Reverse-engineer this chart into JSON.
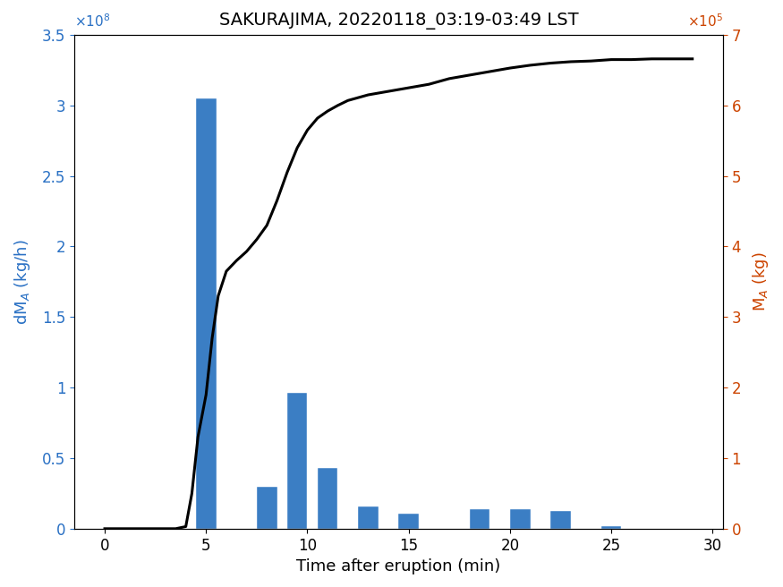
{
  "title": "SAKURAJIMA, 20220118_03:19-03:49 LST",
  "xlabel": "Time after eruption (min)",
  "ylabel_left": "dM$_A$ (kg/h)",
  "ylabel_right": "M$_A$ (kg)",
  "bar_color": "#3b7ec4",
  "line_color": "#000000",
  "left_axis_color": "#2970c4",
  "right_axis_color": "#cc4400",
  "bar_centers": [
    5.0,
    6.0,
    8.0,
    9.5,
    11.0,
    13.0,
    15.0,
    18.5,
    20.5,
    21.5,
    22.5,
    25.0
  ],
  "bar_heights": [
    305000000.0,
    0.0,
    30000000.0,
    96000000.0,
    43000000.0,
    16000000.0,
    10500000.0,
    14000000.0,
    14000000.0,
    0.0,
    12500000.0,
    2000000.0
  ],
  "bar_width": 1.0,
  "cumline_x": [
    0.0,
    1.0,
    2.0,
    3.0,
    3.5,
    4.0,
    4.3,
    4.6,
    5.0,
    5.3,
    5.6,
    6.0,
    6.5,
    7.0,
    7.5,
    8.0,
    8.5,
    9.0,
    9.5,
    10.0,
    10.5,
    11.0,
    11.5,
    12.0,
    13.0,
    14.0,
    15.0,
    16.0,
    17.0,
    18.0,
    19.0,
    20.0,
    21.0,
    22.0,
    23.0,
    24.0,
    25.0,
    26.0,
    27.0,
    28.0,
    29.0
  ],
  "cumline_y": [
    0,
    0,
    0,
    0,
    0,
    3000.0,
    50000.0,
    130000.0,
    190000.0,
    270000.0,
    330000.0,
    365000.0,
    380000.0,
    393000.0,
    410000.0,
    430000.0,
    465000.0,
    505000.0,
    540000.0,
    565000.0,
    582000.0,
    592000.0,
    600000.0,
    607000.0,
    615000.0,
    620000.0,
    625000.0,
    630000.0,
    638000.0,
    643000.0,
    648000.0,
    653000.0,
    657000.0,
    660000.0,
    662000.0,
    663000.0,
    665000.0,
    665000.0,
    666000.0,
    666000.0,
    666000.0
  ],
  "xlim": [
    -1.5,
    30.5
  ],
  "ylim_left": [
    0,
    350000000.0
  ],
  "ylim_right": [
    0,
    700000.0
  ],
  "xticks": [
    0,
    5,
    10,
    15,
    20,
    25,
    30
  ],
  "yticks_left": [
    0,
    50000000.0,
    100000000.0,
    150000000.0,
    200000000.0,
    250000000.0,
    300000000.0,
    350000000.0
  ],
  "yticks_right": [
    0,
    100000.0,
    200000.0,
    300000.0,
    400000.0,
    500000.0,
    600000.0,
    700000.0
  ],
  "title_fontsize": 14,
  "label_fontsize": 13,
  "tick_fontsize": 12
}
